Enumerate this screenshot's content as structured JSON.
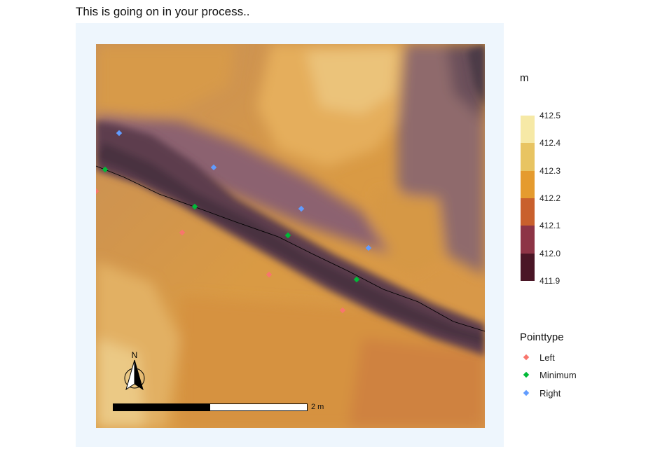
{
  "title": "This is going on in your process..",
  "legend": {
    "raster_title": "m",
    "raster_breaks": [
      "412.5",
      "412.4",
      "412.3",
      "412.2",
      "412.1",
      "412.0",
      "411.9"
    ],
    "raster_colors": [
      "#f6e9a6",
      "#e8c462",
      "#e59b2e",
      "#c9602d",
      "#8d3446",
      "#4a1626"
    ],
    "points_title": "Pointtype",
    "point_items": [
      {
        "label": "Left",
        "color": "#f8766d"
      },
      {
        "label": "Minimum",
        "color": "#00ba38"
      },
      {
        "label": "Right",
        "color": "#619cff"
      }
    ]
  },
  "scale_bar": {
    "label": "2 m"
  },
  "north_arrow": {
    "label": "N",
    "icon": "north-arrow-icon"
  }
}
